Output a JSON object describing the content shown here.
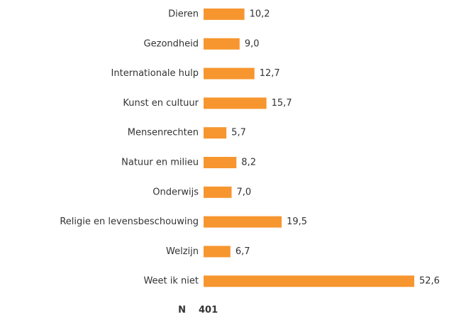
{
  "chart_data": {
    "type": "barh",
    "categories": [
      "Dieren",
      "Gezondheid",
      "Internationale hulp",
      "Kunst en cultuur",
      "Mensenrechten",
      "Natuur en milieu",
      "Onderwijs",
      "Religie en levensbeschouwing",
      "Welzijn",
      "Weet ik niet"
    ],
    "values": [
      10.2,
      9.0,
      12.7,
      15.7,
      5.7,
      8.2,
      7.0,
      19.5,
      6.7,
      52.6
    ],
    "value_labels": [
      "10,2",
      "9,0",
      "12,7",
      "15,7",
      "5,7",
      "8,2",
      "7,0",
      "19,5",
      "6,7",
      "52,6"
    ],
    "color": "#f7962f",
    "footnote": {
      "label": "N",
      "value": 401
    }
  }
}
